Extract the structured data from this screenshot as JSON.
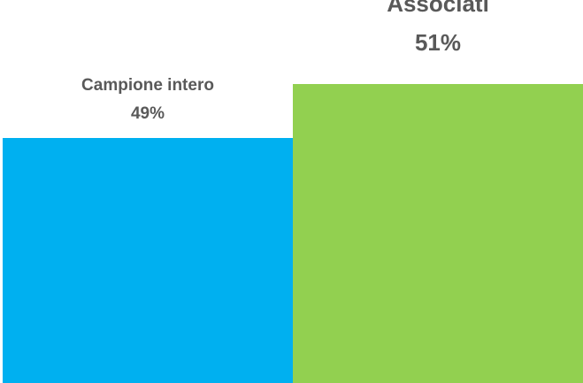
{
  "chart_data": {
    "type": "bar",
    "categories": [
      "Campione intero",
      "Associati"
    ],
    "values": [
      49,
      51
    ],
    "value_labels": [
      "49%",
      "51%"
    ],
    "colors": [
      "#00B0F0",
      "#92D050"
    ],
    "title": "",
    "xlabel": "",
    "ylabel": "",
    "grid": false,
    "legend": "none"
  }
}
